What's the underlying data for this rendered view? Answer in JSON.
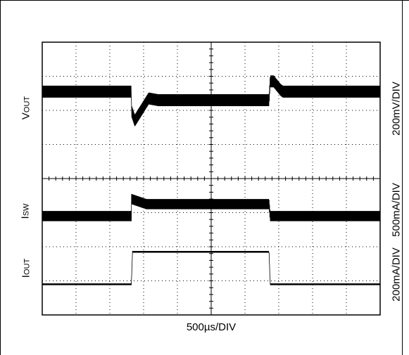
{
  "chart_data": {
    "type": "line",
    "title": "",
    "xlabel": "500µs/DIV",
    "x_divisions": 10,
    "y_divisions": 8,
    "grid": true,
    "x_unit": "div",
    "series": [
      {
        "name": "VOUT",
        "scale": "200mV/DIV",
        "x": [
          0,
          3.85,
          3.85,
          4.0,
          4.6,
          5.0,
          9.8,
          9.85,
          10.0,
          10.3,
          10.4,
          14.6
        ],
        "y": [
          6.55,
          6.55,
          6.0,
          5.7,
          6.35,
          6.3,
          6.3,
          6.85,
          6.85,
          6.6,
          6.55,
          6.55
        ],
        "ripple_div": 0.35
      },
      {
        "name": "ISW",
        "scale": "500mA/DIV",
        "x": [
          0,
          3.85,
          3.85,
          4.5,
          9.8,
          9.85,
          10.0,
          14.6
        ],
        "y": [
          2.9,
          2.9,
          3.4,
          3.25,
          3.25,
          2.9,
          2.9,
          2.9
        ],
        "ripple_div": 0.3
      },
      {
        "name": "IOUT",
        "scale": "200mA/DIV",
        "x": [
          0,
          3.85,
          3.9,
          9.8,
          9.85,
          14.6
        ],
        "y": [
          0.9,
          0.9,
          1.85,
          1.85,
          0.9,
          0.9
        ],
        "ripple_div": 0.05
      }
    ],
    "left_labels": [
      {
        "main": "V",
        "sub": "OUT"
      },
      {
        "main": "I",
        "sub": "SW"
      },
      {
        "main": "I",
        "sub": "OUT"
      }
    ],
    "right_labels": [
      "200mV/DIV",
      "500mA/DIV",
      "200mA/DIV"
    ]
  }
}
